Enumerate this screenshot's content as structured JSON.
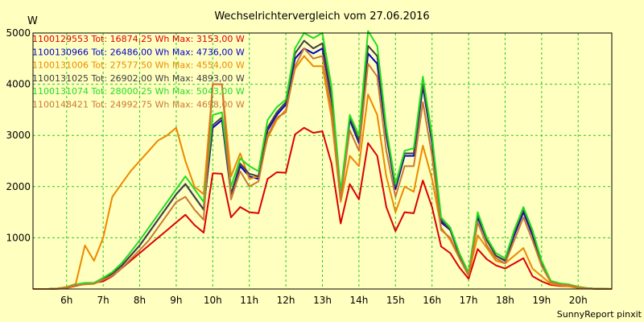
{
  "chart_data": {
    "type": "line",
    "title": "Wechselrichtervergleich vom 27.06.2016",
    "ylabel": "W",
    "xlabel": "",
    "footer": "SunnyReport pinxit",
    "ylim": [
      0,
      5000
    ],
    "xlim": [
      5.08,
      20.92
    ],
    "yticks": [
      1000,
      2000,
      3000,
      4000,
      5000
    ],
    "xticks": [
      6,
      7,
      8,
      9,
      10,
      11,
      12,
      13,
      14,
      15,
      16,
      17,
      18,
      19,
      20
    ],
    "xtick_labels": [
      "6h",
      "7h",
      "8h",
      "9h",
      "10h",
      "11h",
      "12h",
      "13h",
      "14h",
      "15h",
      "16h",
      "17h",
      "18h",
      "19h",
      "20h"
    ],
    "grid": true,
    "legend_position": "top-left",
    "x": [
      5.08,
      5.5,
      5.75,
      6.0,
      6.25,
      6.5,
      6.75,
      7.0,
      7.25,
      7.5,
      7.75,
      8.0,
      8.25,
      8.5,
      8.75,
      9.0,
      9.25,
      9.5,
      9.75,
      10.0,
      10.25,
      10.5,
      10.75,
      11.0,
      11.25,
      11.5,
      11.75,
      12.0,
      12.25,
      12.5,
      12.75,
      13.0,
      13.25,
      13.5,
      13.75,
      14.0,
      14.25,
      14.5,
      14.75,
      15.0,
      15.25,
      15.5,
      15.75,
      16.0,
      16.25,
      16.5,
      16.75,
      17.0,
      17.25,
      17.5,
      17.75,
      18.0,
      18.25,
      18.5,
      18.75,
      19.0,
      19.25,
      19.5,
      19.75,
      20.0,
      20.25,
      20.5,
      20.92
    ],
    "series": [
      {
        "name": "1100129553",
        "legend": "1100129553 Tot: 16874,25 Wh Max: 3153,00 W",
        "color": "#dd0000",
        "values": [
          0,
          0,
          5,
          20,
          60,
          100,
          120,
          150,
          250,
          400,
          550,
          700,
          850,
          1000,
          1150,
          1300,
          1450,
          1250,
          1100,
          2260,
          2250,
          1400,
          1600,
          1500,
          1480,
          2150,
          2280,
          2270,
          3020,
          3150,
          3050,
          3080,
          2450,
          1280,
          2050,
          1750,
          2850,
          2600,
          1600,
          1130,
          1500,
          1480,
          2120,
          1600,
          830,
          700,
          420,
          200,
          780,
          580,
          460,
          400,
          500,
          600,
          250,
          150,
          80,
          60,
          50,
          20,
          10,
          5,
          0
        ]
      },
      {
        "name": "1100130966",
        "legend": "1100130966 Tot: 26486,00 Wh Max: 4736,00 W",
        "color": "#0000cc",
        "values": [
          0,
          0,
          10,
          30,
          80,
          100,
          110,
          200,
          300,
          450,
          650,
          850,
          1100,
          1350,
          1600,
          1850,
          2050,
          1800,
          1550,
          3150,
          3300,
          1850,
          2400,
          2200,
          2150,
          3100,
          3400,
          3600,
          4500,
          4700,
          4600,
          4700,
          3700,
          1800,
          3300,
          2850,
          4600,
          4400,
          3000,
          1950,
          2600,
          2600,
          3950,
          2850,
          1300,
          1150,
          650,
          300,
          1400,
          950,
          650,
          550,
          1050,
          1500,
          1050,
          500,
          150,
          100,
          80,
          40,
          15,
          5,
          0
        ]
      },
      {
        "name": "1100131006",
        "legend": "1100131006 Tot: 27577,50 Wh Max: 4554,00 W",
        "color": "#ee8800",
        "values": [
          0,
          0,
          10,
          40,
          100,
          850,
          550,
          1000,
          1800,
          2050,
          2300,
          2500,
          2700,
          2900,
          3000,
          3150,
          2500,
          2000,
          1850,
          4000,
          4000,
          2200,
          2650,
          2150,
          2200,
          2950,
          3300,
          3500,
          4300,
          4550,
          4350,
          4350,
          3350,
          1700,
          2600,
          2400,
          3800,
          3400,
          2200,
          1500,
          2000,
          1900,
          2800,
          2150,
          1200,
          950,
          600,
          260,
          1050,
          800,
          550,
          500,
          650,
          800,
          400,
          250,
          100,
          70,
          50,
          25,
          10,
          5,
          0
        ]
      },
      {
        "name": "1100131025",
        "legend": "1100131025 Tot: 26902,00 Wh Max: 4893,00 W",
        "color": "#404040",
        "values": [
          0,
          0,
          10,
          30,
          80,
          100,
          110,
          200,
          300,
          450,
          650,
          850,
          1100,
          1350,
          1600,
          1850,
          2050,
          1800,
          1550,
          3200,
          3350,
          1850,
          2450,
          2250,
          2200,
          3150,
          3450,
          3650,
          4600,
          4850,
          4700,
          4800,
          3750,
          1800,
          3350,
          2900,
          4750,
          4550,
          3050,
          2000,
          2650,
          2650,
          4000,
          2900,
          1350,
          1150,
          650,
          300,
          1450,
          950,
          650,
          560,
          1100,
          1550,
          1100,
          500,
          150,
          100,
          80,
          40,
          15,
          5,
          0
        ]
      },
      {
        "name": "1100131074",
        "legend": "1100131074 Tot: 28000,25 Wh Max: 5043,00 W",
        "color": "#22dd22",
        "values": [
          0,
          0,
          10,
          30,
          90,
          120,
          120,
          220,
          330,
          500,
          720,
          950,
          1200,
          1450,
          1700,
          1950,
          2200,
          1950,
          1700,
          3400,
          3450,
          2000,
          2550,
          2400,
          2300,
          3300,
          3550,
          3700,
          4700,
          5000,
          4900,
          5000,
          3950,
          1900,
          3400,
          3000,
          5040,
          4750,
          3150,
          2050,
          2700,
          2750,
          4150,
          3000,
          1400,
          1200,
          700,
          320,
          1500,
          1000,
          700,
          600,
          1150,
          1600,
          1150,
          550,
          160,
          110,
          90,
          45,
          15,
          5,
          0
        ]
      },
      {
        "name": "1100148421",
        "legend": "1100148421 Tot: 24992,75 Wh Max: 4698,00 W",
        "color": "#cc7733",
        "values": [
          0,
          0,
          8,
          25,
          70,
          90,
          100,
          180,
          260,
          400,
          580,
          760,
          950,
          1200,
          1450,
          1700,
          1800,
          1550,
          1350,
          4000,
          4000,
          1750,
          2300,
          2000,
          2100,
          3000,
          3350,
          3450,
          4350,
          4700,
          4500,
          4550,
          3500,
          1750,
          3100,
          2700,
          4400,
          4150,
          2700,
          1800,
          2400,
          2400,
          3650,
          2600,
          1150,
          1000,
          600,
          260,
          1300,
          850,
          600,
          500,
          950,
          1400,
          950,
          450,
          130,
          90,
          70,
          35,
          10,
          5,
          0
        ]
      }
    ]
  }
}
